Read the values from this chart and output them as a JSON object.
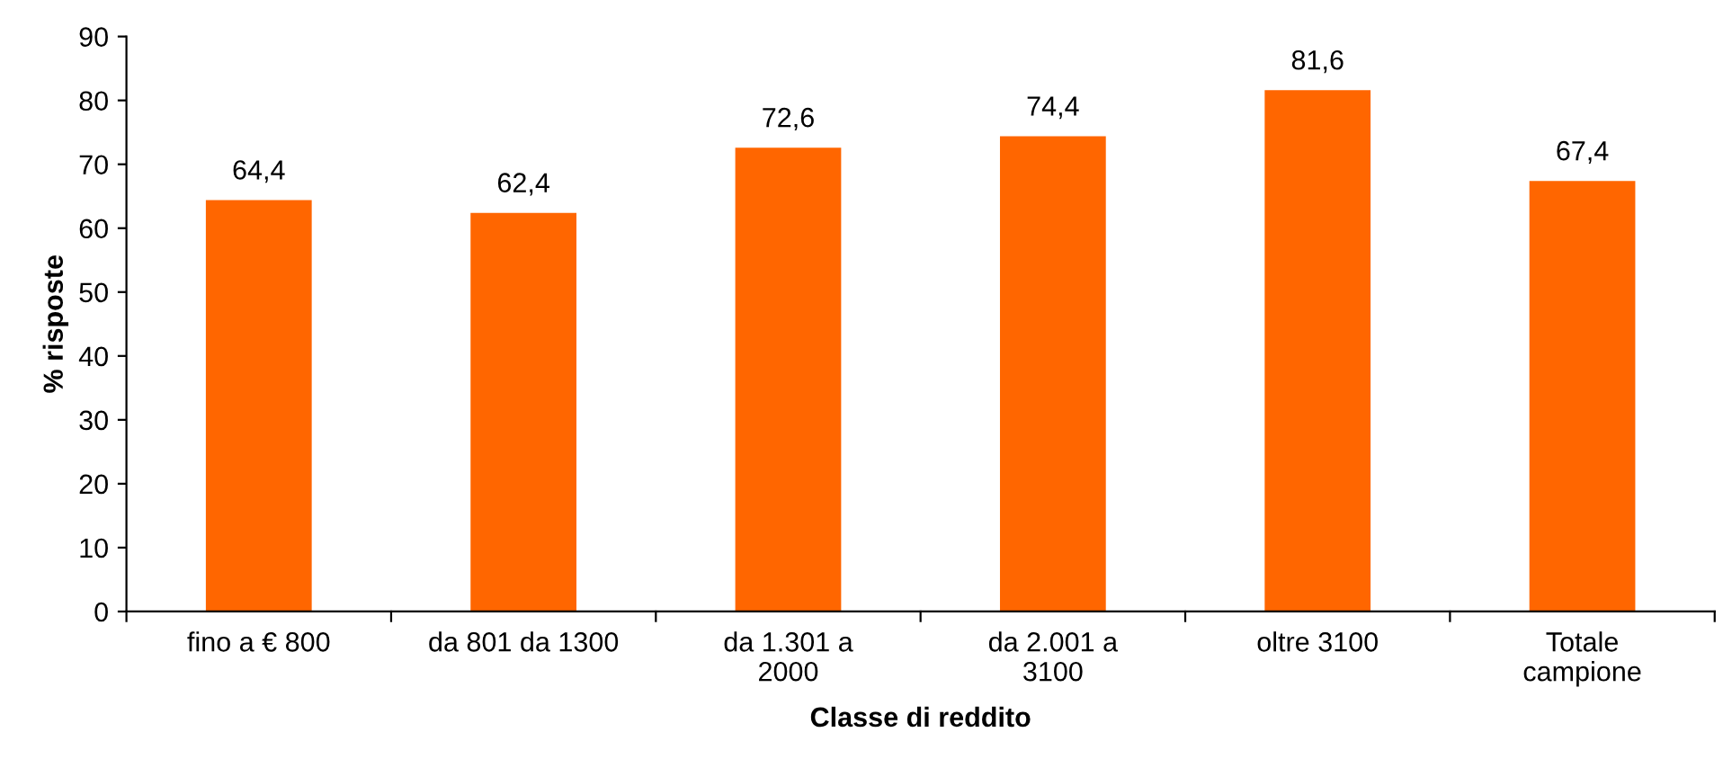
{
  "chart_data": {
    "type": "bar",
    "xlabel": "Classe di reddito",
    "ylabel": "% risposte",
    "categories": [
      "fino a € 800",
      "da 801 da 1300",
      "da 1.301 a\n2000",
      "da 2.001 a\n3100",
      "oltre 3100",
      "Totale\ncampione"
    ],
    "values": [
      64.4,
      62.4,
      72.6,
      74.4,
      81.6,
      67.4
    ],
    "value_labels": [
      "64,4",
      "62,4",
      "72,6",
      "74,4",
      "81,6",
      "67,4"
    ],
    "color": "#ff6600",
    "ylim": [
      0,
      90
    ],
    "yticks": [
      0,
      10,
      20,
      30,
      40,
      50,
      60,
      70,
      80,
      90
    ],
    "grid": false,
    "legend": false
  }
}
